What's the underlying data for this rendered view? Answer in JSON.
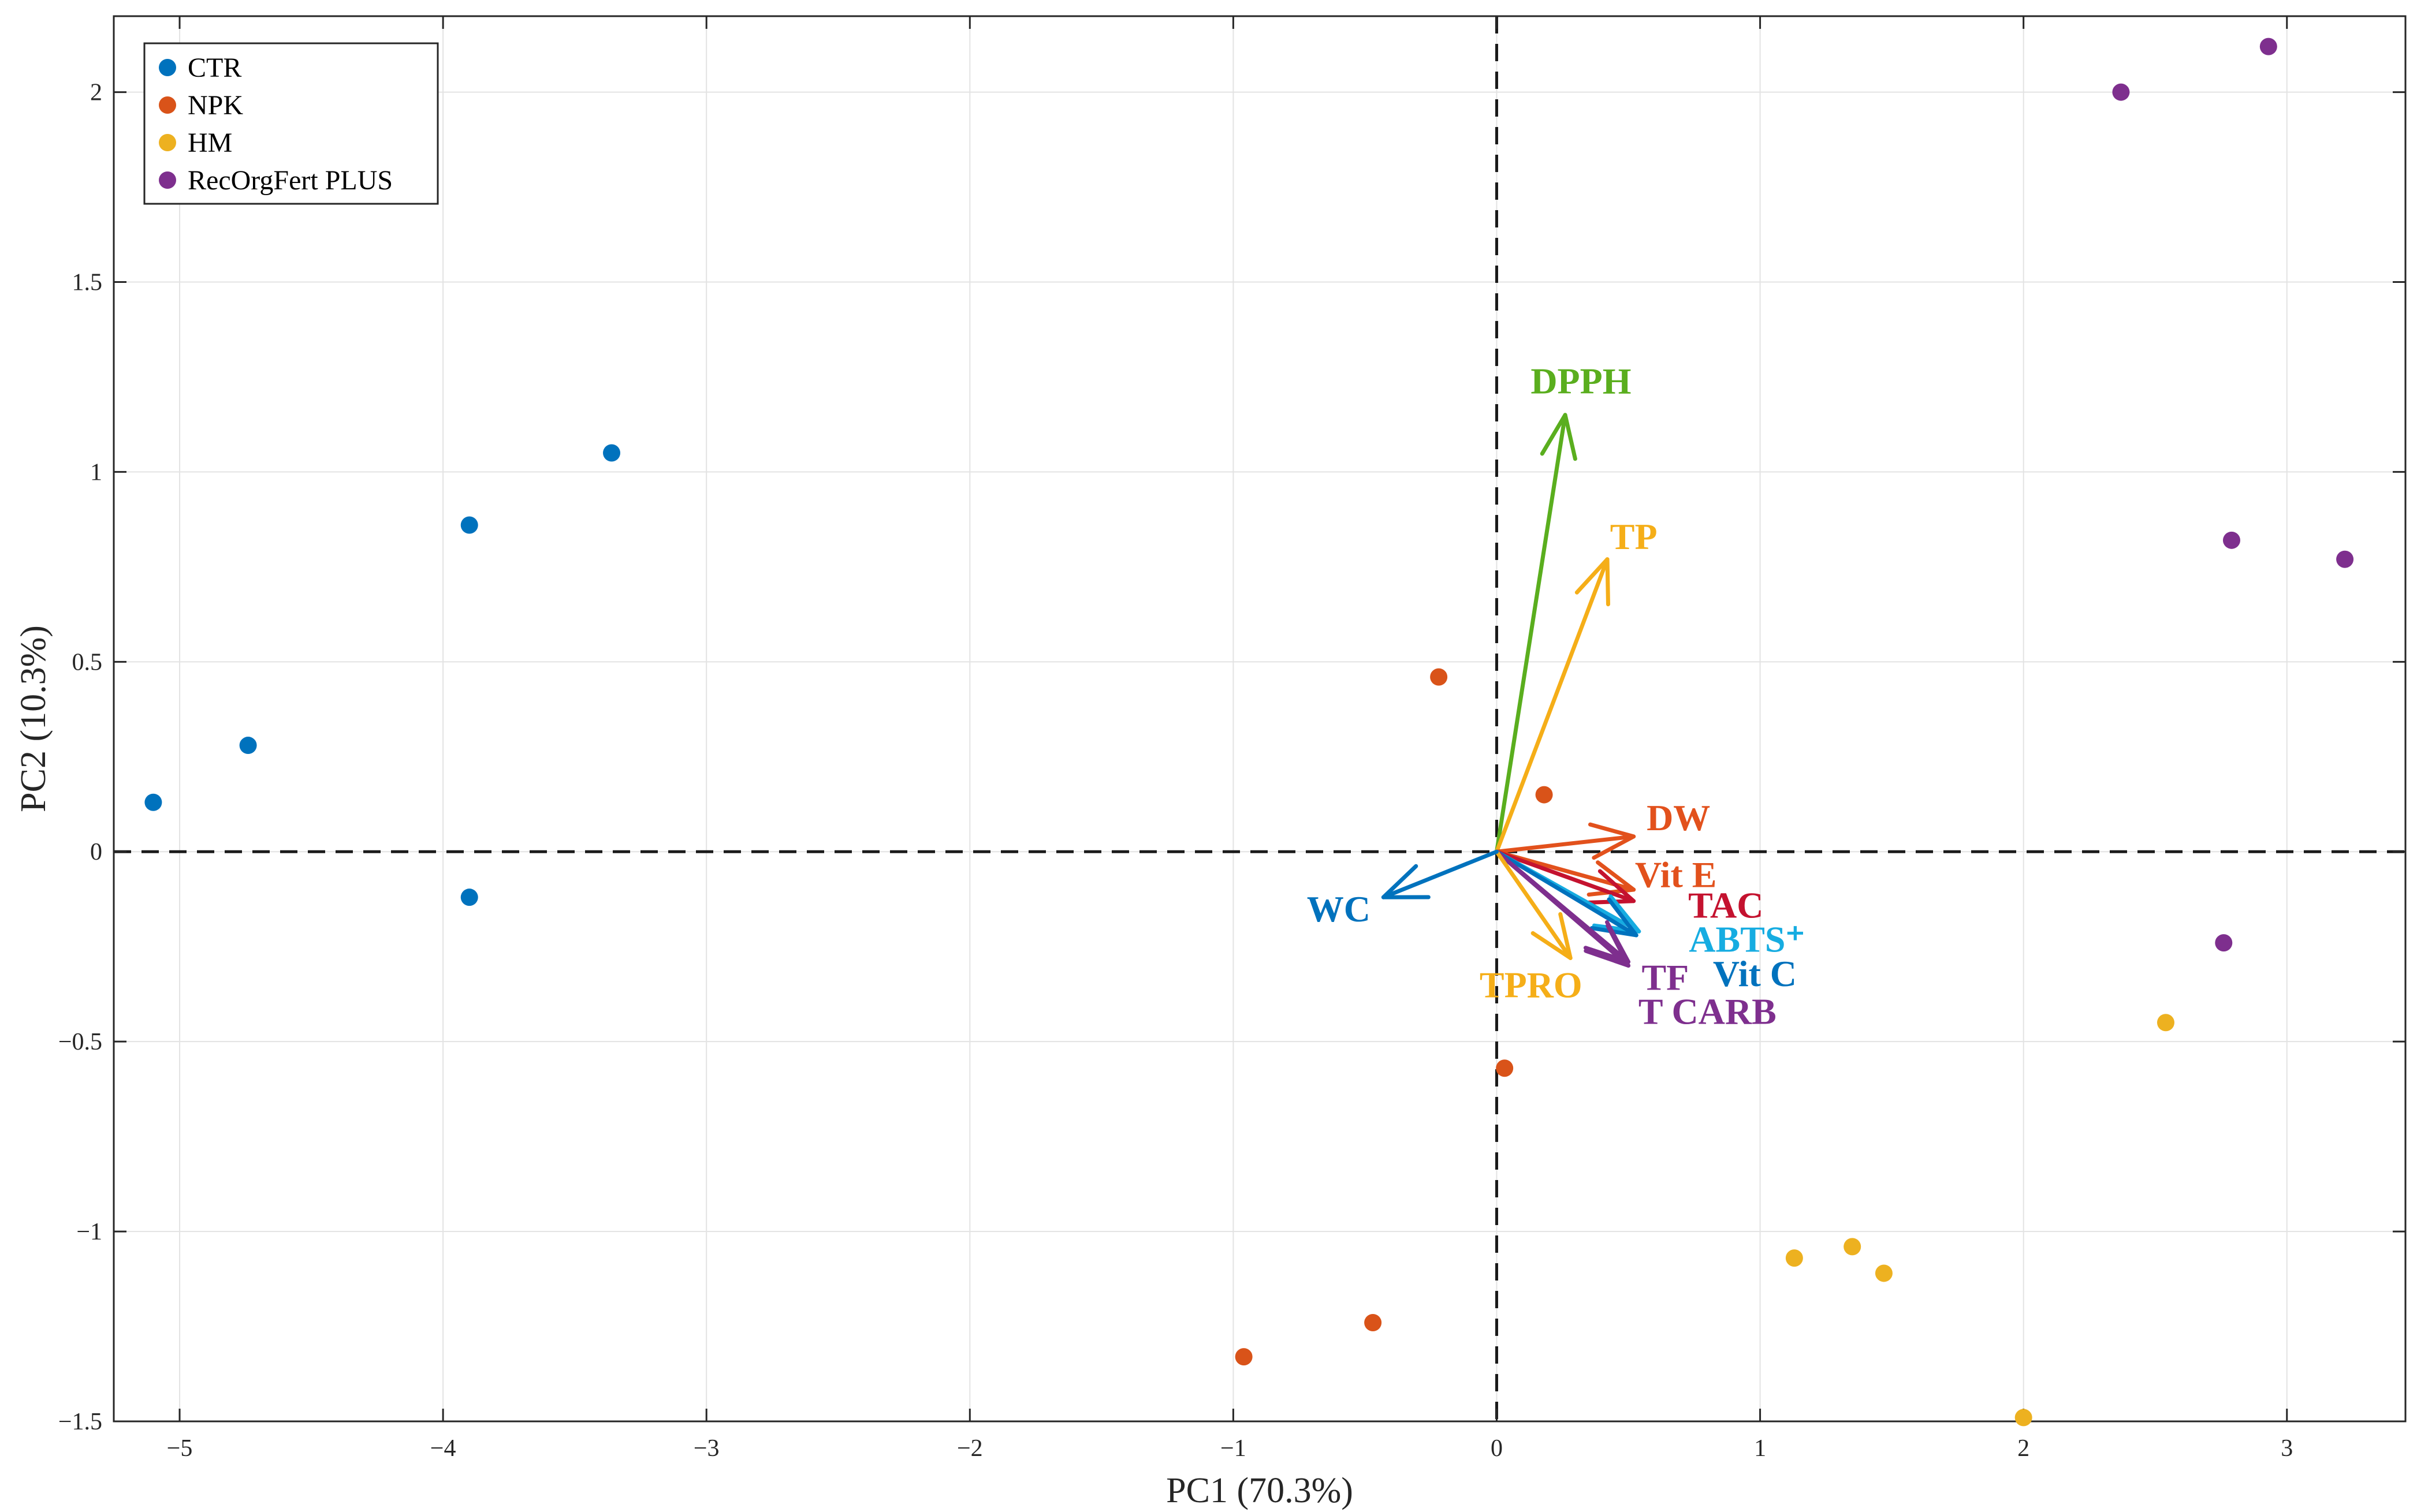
{
  "chart_data": {
    "type": "scatter",
    "title": "",
    "xlabel": "PC1 (70.3%)",
    "ylabel": "PC2 (10.3%)",
    "xlim": [
      -5.25,
      3.45
    ],
    "ylim": [
      -1.5,
      2.2
    ],
    "xticks": [
      -5,
      -4,
      -3,
      -2,
      -1,
      0,
      1,
      2,
      3
    ],
    "yticks": [
      -1.5,
      -1,
      -0.5,
      0,
      0.5,
      1,
      1.5,
      2
    ],
    "xtick_labels": [
      "−5",
      "−4",
      "−3",
      "−2",
      "−1",
      "0",
      "1",
      "2",
      "3"
    ],
    "ytick_labels": [
      "−1.5",
      "−1",
      "−0.5",
      "0",
      "0.5",
      "1",
      "1.5",
      "2"
    ],
    "grid": true,
    "legend_position": "top-left",
    "series": [
      {
        "name": "CTR",
        "color": "#0072BD",
        "points": [
          [
            -5.1,
            0.13
          ],
          [
            -4.74,
            0.28
          ],
          [
            -3.9,
            0.86
          ],
          [
            -3.9,
            -0.12
          ],
          [
            -3.36,
            1.05
          ]
        ]
      },
      {
        "name": "NPK",
        "color": "#D95319",
        "points": [
          [
            -0.22,
            0.46
          ],
          [
            0.18,
            0.15
          ],
          [
            0.03,
            -0.57
          ],
          [
            -0.47,
            -1.24
          ],
          [
            -0.96,
            -1.33
          ]
        ]
      },
      {
        "name": "HM",
        "color": "#EDB120",
        "points": [
          [
            1.13,
            -1.07
          ],
          [
            1.35,
            -1.04
          ],
          [
            1.47,
            -1.11
          ],
          [
            2.0,
            -1.49
          ],
          [
            2.54,
            -0.45
          ]
        ]
      },
      {
        "name": "RecOrgFert PLUS",
        "color": "#7E2F8E",
        "points": [
          [
            2.37,
            2.0
          ],
          [
            2.93,
            2.12
          ],
          [
            2.79,
            0.82
          ],
          [
            3.22,
            0.77
          ],
          [
            2.76,
            -0.24
          ]
        ]
      }
    ],
    "loadings": [
      {
        "label": "DPPH",
        "x": 0.26,
        "y": 1.15,
        "color": "#5AAE1E",
        "label_at": [
          0.32,
          1.24
        ]
      },
      {
        "label": "TP",
        "x": 0.42,
        "y": 0.77,
        "color": "#F5AE18",
        "label_at": [
          0.52,
          0.83
        ]
      },
      {
        "label": "DW",
        "x": 0.52,
        "y": 0.04,
        "color": "#E2511C",
        "label_at": [
          0.69,
          0.09
        ]
      },
      {
        "label": "Vit E",
        "x": 0.52,
        "y": -0.1,
        "color": "#E2511C",
        "label_at": [
          0.68,
          -0.06
        ]
      },
      {
        "label": "TAC",
        "x": 0.52,
        "y": -0.13,
        "color": "#C4122F",
        "label_at": [
          0.87,
          -0.14
        ]
      },
      {
        "label": "ABTS⁺",
        "x": 0.54,
        "y": -0.21,
        "color": "#16ACE1",
        "label_at": [
          0.95,
          -0.23
        ]
      },
      {
        "label": "Vit C",
        "x": 0.53,
        "y": -0.22,
        "color": "#0072BD",
        "label_at": [
          0.98,
          -0.32
        ]
      },
      {
        "label": "TF",
        "x": 0.5,
        "y": -0.29,
        "color": "#7E2F8E",
        "label_at": [
          0.64,
          -0.33
        ]
      },
      {
        "label": "T CARB",
        "x": 0.5,
        "y": -0.3,
        "color": "#7E2F8E",
        "label_at": [
          0.8,
          -0.42
        ]
      },
      {
        "label": "TPRO",
        "x": 0.28,
        "y": -0.28,
        "color": "#F5AE18",
        "label_at": [
          0.13,
          -0.35
        ]
      },
      {
        "label": "WC",
        "x": -0.43,
        "y": -0.12,
        "color": "#0072BD",
        "label_at": [
          -0.6,
          -0.15
        ]
      }
    ]
  }
}
